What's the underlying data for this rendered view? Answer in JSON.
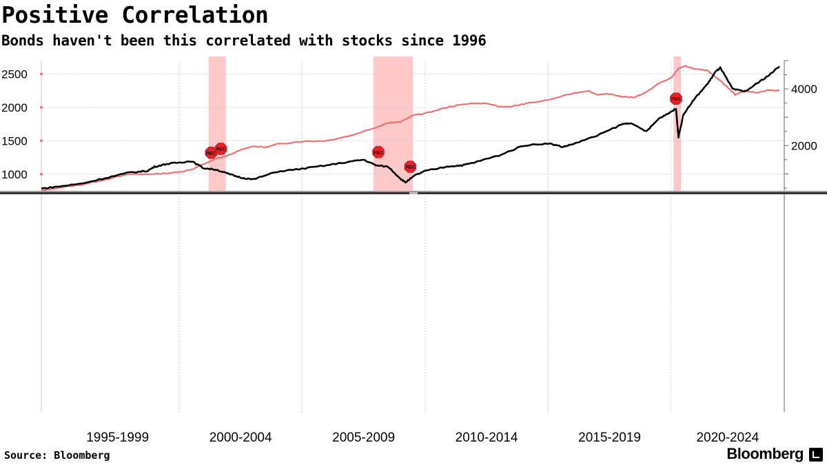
{
  "header": {
    "title": "Positive Correlation",
    "subtitle": "Bonds haven't been this correlated with stocks since 1996"
  },
  "footer": {
    "source": "Source: Bloomberg",
    "brand": "Bloomberg"
  },
  "chart_data": {
    "type": "line",
    "xlim": [
      1994.4,
      2024.6
    ],
    "left_axis": {
      "ticks": [
        1000,
        1500,
        2000,
        2500
      ],
      "range": [
        750,
        2700
      ]
    },
    "right_axis": {
      "ticks": [
        2000,
        4000
      ],
      "range": [
        400,
        5000
      ]
    },
    "x_tick_labels": [
      "1995-1999",
      "2000-2004",
      "2005-2009",
      "2010-2014",
      "2015-2019",
      "2020-2024"
    ],
    "grid": true,
    "recessions": [
      {
        "start": 2001.2,
        "end": 2001.9,
        "label": "REC"
      },
      {
        "start": 2007.9,
        "end": 2009.5,
        "label": "REC"
      },
      {
        "start": 2020.1,
        "end": 2020.4,
        "label": "REC"
      }
    ],
    "recession_markers": [
      {
        "x": 2001.3,
        "axis": "left",
        "y": 1320,
        "label": "REC"
      },
      {
        "x": 2001.7,
        "axis": "left",
        "y": 1380,
        "label": "REC"
      },
      {
        "x": 2008.1,
        "axis": "left",
        "y": 1330,
        "label": "REC"
      },
      {
        "x": 2009.4,
        "axis": "left",
        "y": 1110,
        "label": "REC"
      },
      {
        "x": 2020.2,
        "axis": "left",
        "y": 2130,
        "label": "REC"
      }
    ],
    "series": [
      {
        "axis": "left",
        "color": "#f07070",
        "x": [
          1994.4,
          1995.0,
          1996.0,
          1997.0,
          1998.0,
          1999.0,
          2000.0,
          2000.5,
          2001.0,
          2001.5,
          2002.0,
          2002.5,
          2003.0,
          2003.5,
          2004.0,
          2005.0,
          2006.0,
          2007.0,
          2008.0,
          2008.5,
          2009.0,
          2009.5,
          2010.0,
          2011.0,
          2011.8,
          2012.5,
          2013.0,
          2013.5,
          2014.0,
          2015.0,
          2016.0,
          2016.6,
          2017.0,
          2017.5,
          2018.0,
          2018.5,
          2019.0,
          2019.5,
          2020.0,
          2020.3,
          2020.6,
          2021.0,
          2021.5,
          2022.0,
          2022.3,
          2022.6,
          2023.0,
          2023.5,
          2024.0,
          2024.4
        ],
        "values": [
          750,
          790,
          840,
          920,
          1000,
          1000,
          1030,
          1070,
          1150,
          1230,
          1280,
          1360,
          1420,
          1400,
          1450,
          1490,
          1500,
          1580,
          1700,
          1770,
          1780,
          1880,
          1910,
          2010,
          2060,
          2060,
          2010,
          2010,
          2050,
          2110,
          2210,
          2250,
          2190,
          2200,
          2160,
          2150,
          2230,
          2360,
          2440,
          2580,
          2620,
          2570,
          2550,
          2400,
          2300,
          2190,
          2250,
          2220,
          2260,
          2250
        ]
      },
      {
        "axis": "right",
        "color": "#000000",
        "x": [
          1994.4,
          1995.0,
          1996.0,
          1997.0,
          1998.0,
          1998.7,
          1999.0,
          1999.5,
          2000.0,
          2000.5,
          2001.0,
          2001.5,
          2002.0,
          2002.5,
          2003.0,
          2004.0,
          2005.0,
          2006.0,
          2007.0,
          2007.5,
          2008.0,
          2008.5,
          2009.0,
          2009.2,
          2009.6,
          2010.0,
          2011.0,
          2011.5,
          2012.0,
          2013.0,
          2014.0,
          2015.0,
          2015.6,
          2016.0,
          2017.0,
          2018.0,
          2018.3,
          2019.0,
          2019.5,
          2020.0,
          2020.2,
          2020.3,
          2020.5,
          2021.0,
          2021.5,
          2021.8,
          2022.0,
          2022.5,
          2023.0,
          2023.5,
          2024.0,
          2024.4
        ],
        "values": [
          480,
          540,
          650,
          850,
          1050,
          1100,
          1250,
          1350,
          1400,
          1450,
          1200,
          1150,
          1000,
          870,
          800,
          1080,
          1180,
          1300,
          1440,
          1500,
          1300,
          1250,
          830,
          700,
          950,
          1100,
          1270,
          1300,
          1400,
          1650,
          2000,
          2080,
          1950,
          2050,
          2350,
          2750,
          2800,
          2500,
          2950,
          3200,
          3300,
          2300,
          3100,
          3700,
          4200,
          4600,
          4750,
          4000,
          3900,
          4200,
          4500,
          4800
        ]
      }
    ]
  }
}
